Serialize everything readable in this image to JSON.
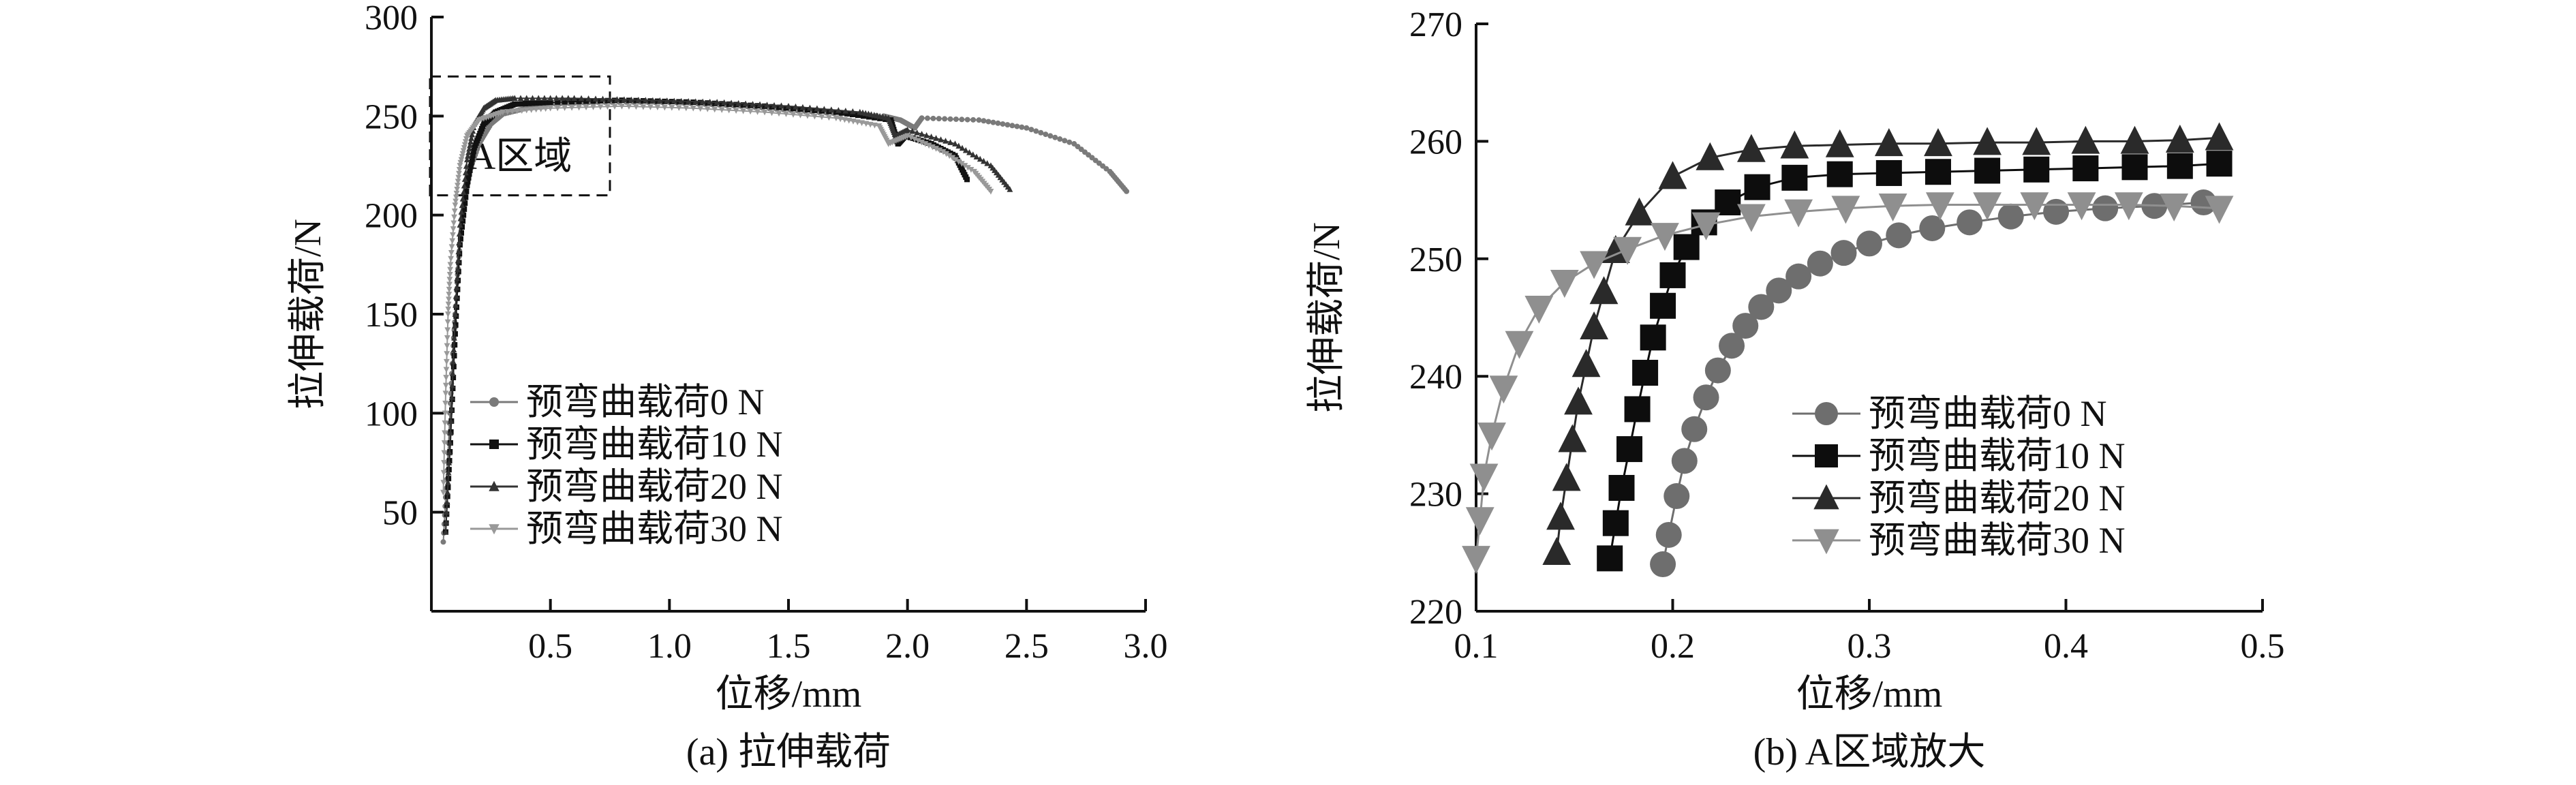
{
  "chart_data": [
    {
      "type": "scatter",
      "caption": "(a) 拉伸载荷",
      "xlabel": "位移/mm",
      "ylabel": "拉伸载荷/N",
      "xlim": [
        0,
        3.0
      ],
      "ylim": [
        0,
        300
      ],
      "xticks": [
        "0.5",
        "1.0",
        "1.5",
        "2.0",
        "2.5",
        "3.0"
      ],
      "yticks": [
        "50",
        "100",
        "150",
        "200",
        "250",
        "300"
      ],
      "grid": false,
      "legend_position": "center-left",
      "annotation": {
        "text": "A区域",
        "box_x": [
          0,
          0.75
        ],
        "box_y": [
          210,
          270
        ]
      },
      "series": [
        {
          "name": "预弯曲载荷0 N",
          "marker": "circle",
          "color": "#7a7a7a",
          "points": [
            [
              0.05,
              35
            ],
            [
              0.07,
              80
            ],
            [
              0.09,
              130
            ],
            [
              0.11,
              170
            ],
            [
              0.13,
              200
            ],
            [
              0.16,
              222
            ],
            [
              0.2,
              236
            ],
            [
              0.25,
              246
            ],
            [
              0.3,
              251
            ],
            [
              0.4,
              254
            ],
            [
              0.5,
              256
            ],
            [
              0.7,
              257
            ],
            [
              1.0,
              257
            ],
            [
              1.3,
              255
            ],
            [
              1.6,
              252
            ],
            [
              1.9,
              250
            ],
            [
              1.97,
              248
            ],
            [
              2.0,
              246
            ],
            [
              2.03,
              244
            ],
            [
              2.06,
              249
            ],
            [
              2.3,
              248
            ],
            [
              2.5,
              244
            ],
            [
              2.7,
              236
            ],
            [
              2.85,
              222
            ],
            [
              2.92,
              212
            ]
          ]
        },
        {
          "name": "预弯曲载荷10 N",
          "marker": "square",
          "color": "#111111",
          "points": [
            [
              0.06,
              40
            ],
            [
              0.08,
              85
            ],
            [
              0.1,
              140
            ],
            [
              0.12,
              185
            ],
            [
              0.15,
              215
            ],
            [
              0.18,
              234
            ],
            [
              0.22,
              246
            ],
            [
              0.27,
              252
            ],
            [
              0.35,
              256
            ],
            [
              0.5,
              257
            ],
            [
              0.8,
              258
            ],
            [
              1.1,
              257
            ],
            [
              1.4,
              255
            ],
            [
              1.7,
              252
            ],
            [
              1.93,
              248
            ],
            [
              1.96,
              236
            ],
            [
              1.99,
              240
            ],
            [
              2.1,
              236
            ],
            [
              2.2,
              230
            ],
            [
              2.25,
              218
            ]
          ]
        },
        {
          "name": "预弯曲载荷20 N",
          "marker": "triangle-up",
          "color": "#333333",
          "points": [
            [
              0.06,
              40
            ],
            [
              0.08,
              90
            ],
            [
              0.1,
              150
            ],
            [
              0.12,
              195
            ],
            [
              0.15,
              228
            ],
            [
              0.18,
              246
            ],
            [
              0.22,
              254
            ],
            [
              0.27,
              258
            ],
            [
              0.35,
              259
            ],
            [
              0.6,
              259
            ],
            [
              0.9,
              258
            ],
            [
              1.2,
              257
            ],
            [
              1.5,
              255
            ],
            [
              1.8,
              252
            ],
            [
              1.92,
              249
            ],
            [
              1.95,
              240
            ],
            [
              2.0,
              243
            ],
            [
              2.2,
              236
            ],
            [
              2.35,
              225
            ],
            [
              2.43,
              213
            ]
          ]
        },
        {
          "name": "预弯曲载荷30 N",
          "marker": "triangle-down",
          "color": "#999999",
          "points": [
            [
              0.05,
              60
            ],
            [
              0.06,
              110
            ],
            [
              0.07,
              150
            ],
            [
              0.08,
              175
            ],
            [
              0.1,
              205
            ],
            [
              0.12,
              225
            ],
            [
              0.15,
              240
            ],
            [
              0.2,
              248
            ],
            [
              0.3,
              252
            ],
            [
              0.5,
              254
            ],
            [
              0.8,
              255
            ],
            [
              1.1,
              254
            ],
            [
              1.4,
              252
            ],
            [
              1.7,
              249
            ],
            [
              1.88,
              245
            ],
            [
              1.92,
              236
            ],
            [
              2.0,
              240
            ],
            [
              2.15,
              232
            ],
            [
              2.28,
              222
            ],
            [
              2.35,
              212
            ]
          ]
        }
      ]
    },
    {
      "type": "scatter",
      "caption": "(b) A区域放大",
      "xlabel": "位移/mm",
      "ylabel": "拉伸载荷/N",
      "xlim": [
        0.1,
        0.5
      ],
      "ylim": [
        220,
        270
      ],
      "xticks": [
        "0.1",
        "0.2",
        "0.3",
        "0.4",
        "0.5"
      ],
      "yticks": [
        "220",
        "230",
        "240",
        "250",
        "260",
        "270"
      ],
      "grid": false,
      "legend_position": "bottom-right",
      "series": [
        {
          "name": "预弯曲载荷0 N",
          "marker": "circle",
          "color": "#6e6e6e",
          "points": [
            [
              0.195,
              224.0
            ],
            [
              0.198,
              226.5
            ],
            [
              0.202,
              229.8
            ],
            [
              0.206,
              232.8
            ],
            [
              0.211,
              235.5
            ],
            [
              0.217,
              238.2
            ],
            [
              0.223,
              240.5
            ],
            [
              0.23,
              242.6
            ],
            [
              0.237,
              244.3
            ],
            [
              0.245,
              245.9
            ],
            [
              0.254,
              247.3
            ],
            [
              0.264,
              248.5
            ],
            [
              0.275,
              249.6
            ],
            [
              0.287,
              250.5
            ],
            [
              0.3,
              251.3
            ],
            [
              0.315,
              252.0
            ],
            [
              0.332,
              252.6
            ],
            [
              0.351,
              253.1
            ],
            [
              0.372,
              253.6
            ],
            [
              0.395,
              254.0
            ],
            [
              0.42,
              254.3
            ],
            [
              0.445,
              254.5
            ],
            [
              0.47,
              254.8
            ]
          ]
        },
        {
          "name": "预弯曲载荷10 N",
          "marker": "square",
          "color": "#0d0d0d",
          "points": [
            [
              0.168,
              224.5
            ],
            [
              0.171,
              227.5
            ],
            [
              0.174,
              230.5
            ],
            [
              0.178,
              233.8
            ],
            [
              0.182,
              237.2
            ],
            [
              0.186,
              240.3
            ],
            [
              0.19,
              243.3
            ],
            [
              0.195,
              246.0
            ],
            [
              0.2,
              248.6
            ],
            [
              0.207,
              251.0
            ],
            [
              0.216,
              253.1
            ],
            [
              0.228,
              254.8
            ],
            [
              0.243,
              256.1
            ],
            [
              0.262,
              256.9
            ],
            [
              0.285,
              257.2
            ],
            [
              0.31,
              257.3
            ],
            [
              0.335,
              257.4
            ],
            [
              0.36,
              257.5
            ],
            [
              0.385,
              257.6
            ],
            [
              0.41,
              257.7
            ],
            [
              0.435,
              257.8
            ],
            [
              0.458,
              257.9
            ],
            [
              0.478,
              258.1
            ]
          ]
        },
        {
          "name": "预弯曲载荷20 N",
          "marker": "triangle-up",
          "color": "#2a2a2a",
          "points": [
            [
              0.141,
              225.0
            ],
            [
              0.143,
              228.0
            ],
            [
              0.146,
              231.3
            ],
            [
              0.149,
              234.6
            ],
            [
              0.152,
              237.8
            ],
            [
              0.156,
              241.0
            ],
            [
              0.16,
              244.2
            ],
            [
              0.165,
              247.2
            ],
            [
              0.171,
              250.7
            ],
            [
              0.183,
              253.9
            ],
            [
              0.2,
              257.0
            ],
            [
              0.219,
              258.6
            ],
            [
              0.24,
              259.3
            ],
            [
              0.262,
              259.6
            ],
            [
              0.285,
              259.7
            ],
            [
              0.31,
              259.8
            ],
            [
              0.335,
              259.8
            ],
            [
              0.36,
              259.9
            ],
            [
              0.385,
              259.9
            ],
            [
              0.41,
              260.0
            ],
            [
              0.435,
              260.0
            ],
            [
              0.458,
              260.1
            ],
            [
              0.478,
              260.3
            ]
          ]
        },
        {
          "name": "预弯曲载荷30 N",
          "marker": "triangle-down",
          "color": "#8f8f8f",
          "points": [
            [
              0.1,
              224.5
            ],
            [
              0.102,
              227.8
            ],
            [
              0.104,
              231.5
            ],
            [
              0.108,
              235.0
            ],
            [
              0.114,
              239.0
            ],
            [
              0.122,
              242.8
            ],
            [
              0.132,
              245.8
            ],
            [
              0.145,
              248.0
            ],
            [
              0.16,
              249.6
            ],
            [
              0.177,
              250.8
            ],
            [
              0.196,
              252.0
            ],
            [
              0.217,
              252.9
            ],
            [
              0.24,
              253.6
            ],
            [
              0.264,
              254.0
            ],
            [
              0.288,
              254.3
            ],
            [
              0.312,
              254.5
            ],
            [
              0.336,
              254.6
            ],
            [
              0.36,
              254.6
            ],
            [
              0.384,
              254.6
            ],
            [
              0.408,
              254.6
            ],
            [
              0.432,
              254.6
            ],
            [
              0.455,
              254.5
            ],
            [
              0.478,
              254.3
            ]
          ]
        }
      ]
    }
  ]
}
